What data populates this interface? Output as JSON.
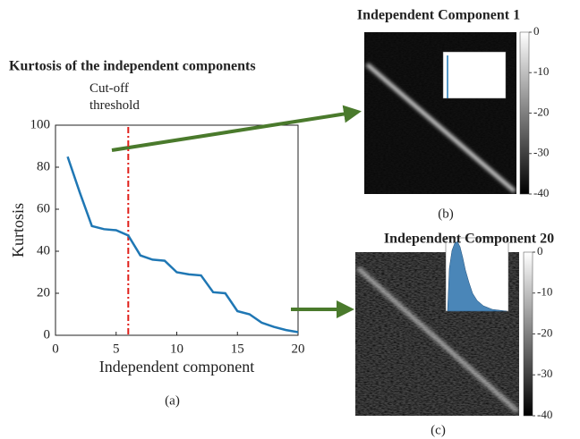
{
  "chart_data": [
    {
      "type": "line",
      "title": "Kurtosis of the independent components",
      "x_label": "Independent component",
      "y_label": "Kurtosis",
      "caption": "(a)",
      "x": [
        1,
        2,
        3,
        4,
        5,
        6,
        7,
        8,
        9,
        10,
        11,
        12,
        13,
        14,
        15,
        16,
        17,
        18,
        19,
        20
      ],
      "series": [
        {
          "name": "Kurtosis",
          "color": "#1f77b4",
          "values": [
            85,
            68,
            52,
            50.5,
            50,
            47.5,
            38,
            36,
            35.5,
            30,
            29,
            28.5,
            20.5,
            20,
            11.5,
            10,
            6,
            4,
            2.5,
            1.5
          ]
        }
      ],
      "xlim": [
        0,
        20
      ],
      "xticks": [
        0,
        5,
        10,
        15,
        20
      ],
      "ylim": [
        0,
        100
      ],
      "yticks": [
        0,
        20,
        40,
        60,
        80,
        100
      ],
      "threshold": {
        "label": "Cut-off threshold",
        "x": 6,
        "color": "#e0201b"
      }
    },
    {
      "type": "image",
      "title": "Independent Component 1",
      "caption": "(b)",
      "ylim": [
        -40,
        0
      ],
      "yticks": [
        0,
        -10,
        -20,
        -30,
        -40
      ]
    },
    {
      "type": "image",
      "title": "Independent Component 20",
      "caption": "(c)",
      "ylim": [
        -40,
        0
      ],
      "yticks": [
        0,
        -10,
        -20,
        -30,
        -40
      ]
    }
  ]
}
